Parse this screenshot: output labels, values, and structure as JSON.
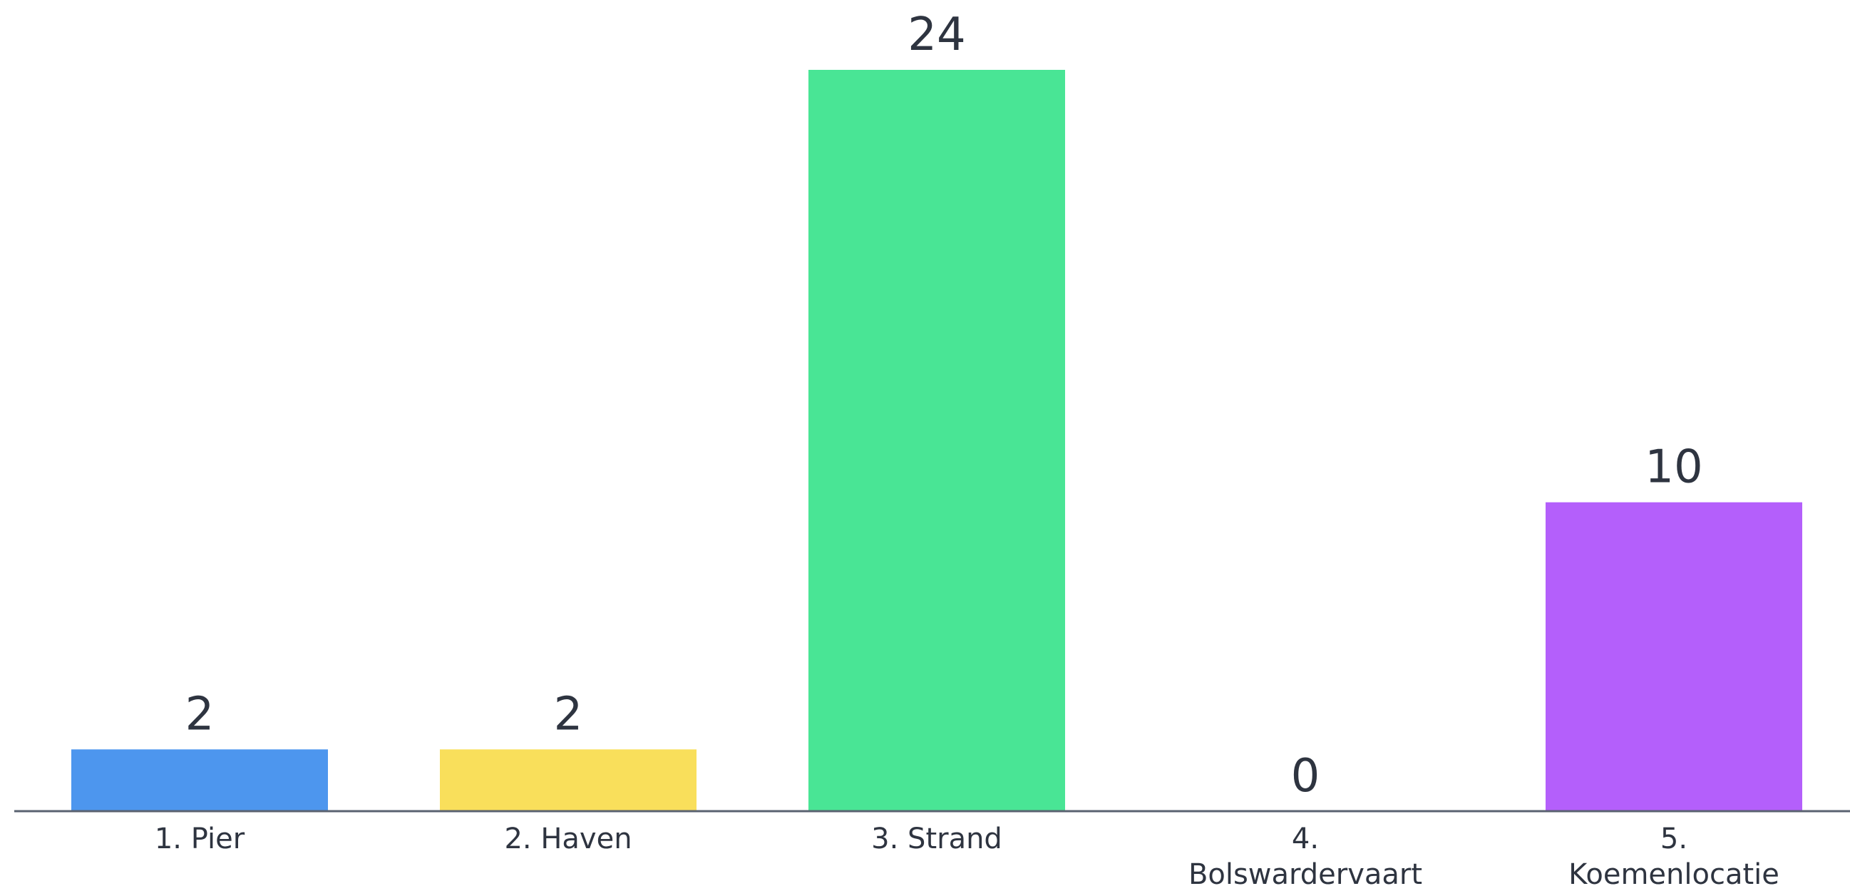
{
  "chart_data": {
    "type": "bar",
    "categories": [
      [
        "1. Pier"
      ],
      [
        "2. Haven"
      ],
      [
        "3. Strand"
      ],
      [
        "4.",
        "Bolswardervaart"
      ],
      [
        "5.",
        "Koemenlocatie"
      ]
    ],
    "values": [
      2,
      2,
      24,
      0,
      10
    ],
    "value_labels": [
      "2",
      "2",
      "24",
      "0",
      "10"
    ],
    "colors": [
      "#4d96ee",
      "#f9df5b",
      "#49e595",
      "#ffffff",
      "#b45ffb"
    ],
    "ylim": [
      0,
      24
    ],
    "grid": false,
    "axis_color": "#5a6270",
    "label_color": "#2e3440"
  }
}
